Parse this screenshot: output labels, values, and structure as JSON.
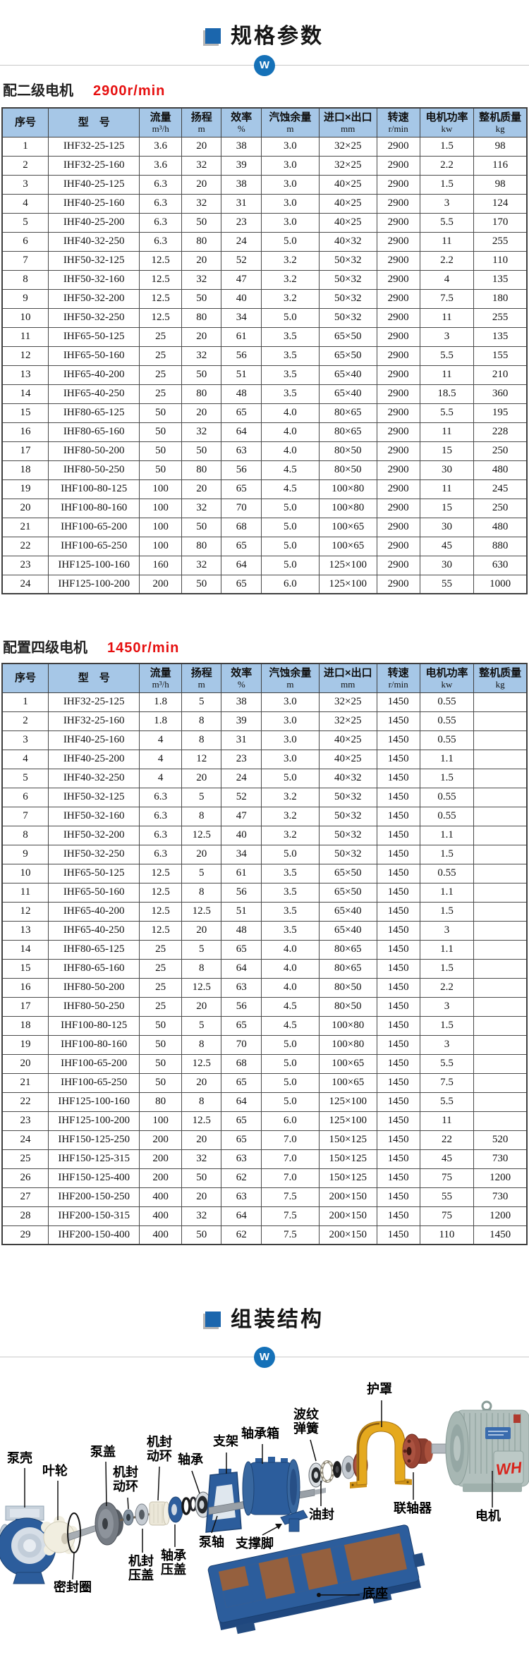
{
  "header": {
    "spec_title": "规格参数",
    "assembly_title": "组装结构",
    "logo_letter": "W"
  },
  "sections": {
    "two_pole": {
      "label": "配二级电机",
      "speed": "2900r/min"
    },
    "four_pole": {
      "label": "配置四级电机",
      "speed": "1450r/min"
    }
  },
  "table": {
    "columns": [
      {
        "title": "序号",
        "unit": ""
      },
      {
        "title": "型　号",
        "unit": ""
      },
      {
        "title": "流量",
        "unit": "m³/h"
      },
      {
        "title": "扬程",
        "unit": "m"
      },
      {
        "title": "效率",
        "unit": "%"
      },
      {
        "title": "汽蚀余量",
        "unit": "m"
      },
      {
        "title": "进口×出口",
        "unit": "mm"
      },
      {
        "title": "转速",
        "unit": "r/min"
      },
      {
        "title": "电机功率",
        "unit": "kw"
      },
      {
        "title": "整机质量",
        "unit": "kg"
      }
    ]
  },
  "table_2900": {
    "rows": [
      [
        "1",
        "IHF32-25-125",
        "3.6",
        "20",
        "38",
        "3.0",
        "32×25",
        "2900",
        "1.5",
        "98"
      ],
      [
        "2",
        "IHF32-25-160",
        "3.6",
        "32",
        "39",
        "3.0",
        "32×25",
        "2900",
        "2.2",
        "116"
      ],
      [
        "3",
        "IHF40-25-125",
        "6.3",
        "20",
        "38",
        "3.0",
        "40×25",
        "2900",
        "1.5",
        "98"
      ],
      [
        "4",
        "IHF40-25-160",
        "6.3",
        "32",
        "31",
        "3.0",
        "40×25",
        "2900",
        "3",
        "124"
      ],
      [
        "5",
        "IHF40-25-200",
        "6.3",
        "50",
        "23",
        "3.0",
        "40×25",
        "2900",
        "5.5",
        "170"
      ],
      [
        "6",
        "IHF40-32-250",
        "6.3",
        "80",
        "24",
        "5.0",
        "40×32",
        "2900",
        "11",
        "255"
      ],
      [
        "7",
        "IHF50-32-125",
        "12.5",
        "20",
        "52",
        "3.2",
        "50×32",
        "2900",
        "2.2",
        "110"
      ],
      [
        "8",
        "IHF50-32-160",
        "12.5",
        "32",
        "47",
        "3.2",
        "50×32",
        "2900",
        "4",
        "135"
      ],
      [
        "9",
        "IHF50-32-200",
        "12.5",
        "50",
        "40",
        "3.2",
        "50×32",
        "2900",
        "7.5",
        "180"
      ],
      [
        "10",
        "IHF50-32-250",
        "12.5",
        "80",
        "34",
        "5.0",
        "50×32",
        "2900",
        "11",
        "255"
      ],
      [
        "11",
        "IHF65-50-125",
        "25",
        "20",
        "61",
        "3.5",
        "65×50",
        "2900",
        "3",
        "135"
      ],
      [
        "12",
        "IHF65-50-160",
        "25",
        "32",
        "56",
        "3.5",
        "65×50",
        "2900",
        "5.5",
        "155"
      ],
      [
        "13",
        "IHF65-40-200",
        "25",
        "50",
        "51",
        "3.5",
        "65×40",
        "2900",
        "11",
        "210"
      ],
      [
        "14",
        "IHF65-40-250",
        "25",
        "80",
        "48",
        "3.5",
        "65×40",
        "2900",
        "18.5",
        "360"
      ],
      [
        "15",
        "IHF80-65-125",
        "50",
        "20",
        "65",
        "4.0",
        "80×65",
        "2900",
        "5.5",
        "195"
      ],
      [
        "16",
        "IHF80-65-160",
        "50",
        "32",
        "64",
        "4.0",
        "80×65",
        "2900",
        "11",
        "228"
      ],
      [
        "17",
        "IHF80-50-200",
        "50",
        "50",
        "63",
        "4.0",
        "80×50",
        "2900",
        "15",
        "250"
      ],
      [
        "18",
        "IHF80-50-250",
        "50",
        "80",
        "56",
        "4.5",
        "80×50",
        "2900",
        "30",
        "480"
      ],
      [
        "19",
        "IHF100-80-125",
        "100",
        "20",
        "65",
        "4.5",
        "100×80",
        "2900",
        "11",
        "245"
      ],
      [
        "20",
        "IHF100-80-160",
        "100",
        "32",
        "70",
        "5.0",
        "100×80",
        "2900",
        "15",
        "250"
      ],
      [
        "21",
        "IHF100-65-200",
        "100",
        "50",
        "68",
        "5.0",
        "100×65",
        "2900",
        "30",
        "480"
      ],
      [
        "22",
        "IHF100-65-250",
        "100",
        "80",
        "65",
        "5.0",
        "100×65",
        "2900",
        "45",
        "880"
      ],
      [
        "23",
        "IHF125-100-160",
        "160",
        "32",
        "64",
        "5.0",
        "125×100",
        "2900",
        "30",
        "630"
      ],
      [
        "24",
        "IHF125-100-200",
        "200",
        "50",
        "65",
        "6.0",
        "125×100",
        "2900",
        "55",
        "1000"
      ]
    ]
  },
  "table_1450": {
    "rows": [
      [
        "1",
        "IHF32-25-125",
        "1.8",
        "5",
        "38",
        "3.0",
        "32×25",
        "1450",
        "0.55",
        ""
      ],
      [
        "2",
        "IHF32-25-160",
        "1.8",
        "8",
        "39",
        "3.0",
        "32×25",
        "1450",
        "0.55",
        ""
      ],
      [
        "3",
        "IHF40-25-160",
        "4",
        "8",
        "31",
        "3.0",
        "40×25",
        "1450",
        "0.55",
        ""
      ],
      [
        "4",
        "IHF40-25-200",
        "4",
        "12",
        "23",
        "3.0",
        "40×25",
        "1450",
        "1.1",
        ""
      ],
      [
        "5",
        "IHF40-32-250",
        "4",
        "20",
        "24",
        "5.0",
        "40×32",
        "1450",
        "1.5",
        ""
      ],
      [
        "6",
        "IHF50-32-125",
        "6.3",
        "5",
        "52",
        "3.2",
        "50×32",
        "1450",
        "0.55",
        ""
      ],
      [
        "7",
        "IHF50-32-160",
        "6.3",
        "8",
        "47",
        "3.2",
        "50×32",
        "1450",
        "0.55",
        ""
      ],
      [
        "8",
        "IHF50-32-200",
        "6.3",
        "12.5",
        "40",
        "3.2",
        "50×32",
        "1450",
        "1.1",
        ""
      ],
      [
        "9",
        "IHF50-32-250",
        "6.3",
        "20",
        "34",
        "5.0",
        "50×32",
        "1450",
        "1.5",
        ""
      ],
      [
        "10",
        "IHF65-50-125",
        "12.5",
        "5",
        "61",
        "3.5",
        "65×50",
        "1450",
        "0.55",
        ""
      ],
      [
        "11",
        "IHF65-50-160",
        "12.5",
        "8",
        "56",
        "3.5",
        "65×50",
        "1450",
        "1.1",
        ""
      ],
      [
        "12",
        "IHF65-40-200",
        "12.5",
        "12.5",
        "51",
        "3.5",
        "65×40",
        "1450",
        "1.5",
        ""
      ],
      [
        "13",
        "IHF65-40-250",
        "12.5",
        "20",
        "48",
        "3.5",
        "65×40",
        "1450",
        "3",
        ""
      ],
      [
        "14",
        "IHF80-65-125",
        "25",
        "5",
        "65",
        "4.0",
        "80×65",
        "1450",
        "1.1",
        ""
      ],
      [
        "15",
        "IHF80-65-160",
        "25",
        "8",
        "64",
        "4.0",
        "80×65",
        "1450",
        "1.5",
        ""
      ],
      [
        "16",
        "IHF80-50-200",
        "25",
        "12.5",
        "63",
        "4.0",
        "80×50",
        "1450",
        "2.2",
        ""
      ],
      [
        "17",
        "IHF80-50-250",
        "25",
        "20",
        "56",
        "4.5",
        "80×50",
        "1450",
        "3",
        ""
      ],
      [
        "18",
        "IHF100-80-125",
        "50",
        "5",
        "65",
        "4.5",
        "100×80",
        "1450",
        "1.5",
        ""
      ],
      [
        "19",
        "IHF100-80-160",
        "50",
        "8",
        "70",
        "5.0",
        "100×80",
        "1450",
        "3",
        ""
      ],
      [
        "20",
        "IHF100-65-200",
        "50",
        "12.5",
        "68",
        "5.0",
        "100×65",
        "1450",
        "5.5",
        ""
      ],
      [
        "21",
        "IHF100-65-250",
        "50",
        "20",
        "65",
        "5.0",
        "100×65",
        "1450",
        "7.5",
        ""
      ],
      [
        "22",
        "IHF125-100-160",
        "80",
        "8",
        "64",
        "5.0",
        "125×100",
        "1450",
        "5.5",
        ""
      ],
      [
        "23",
        "IHF125-100-200",
        "100",
        "12.5",
        "65",
        "6.0",
        "125×100",
        "1450",
        "11",
        ""
      ],
      [
        "24",
        "IHF150-125-250",
        "200",
        "20",
        "65",
        "7.0",
        "150×125",
        "1450",
        "22",
        "520"
      ],
      [
        "25",
        "IHF150-125-315",
        "200",
        "32",
        "63",
        "7.0",
        "150×125",
        "1450",
        "45",
        "730"
      ],
      [
        "26",
        "IHF150-125-400",
        "200",
        "50",
        "62",
        "7.0",
        "150×125",
        "1450",
        "75",
        "1200"
      ],
      [
        "27",
        "IHF200-150-250",
        "400",
        "20",
        "63",
        "7.5",
        "200×150",
        "1450",
        "55",
        "730"
      ],
      [
        "28",
        "IHF200-150-315",
        "400",
        "32",
        "64",
        "7.5",
        "200×150",
        "1450",
        "75",
        "1200"
      ],
      [
        "29",
        "IHF200-150-400",
        "400",
        "50",
        "62",
        "7.5",
        "200×150",
        "1450",
        "110",
        "1450"
      ]
    ]
  },
  "diagram": {
    "motor_mark": "WH",
    "labels": [
      {
        "text": "泵壳"
      },
      {
        "text": "叶轮"
      },
      {
        "text": "泵盖"
      },
      {
        "text": "机封动环"
      },
      {
        "text": "机封动环"
      },
      {
        "text": "机封压盖"
      },
      {
        "text": "轴承压盖"
      },
      {
        "text": "轴承"
      },
      {
        "text": "支架"
      },
      {
        "text": "轴承箱"
      },
      {
        "text": "泵轴"
      },
      {
        "text": "支撑脚"
      },
      {
        "text": "波纹弹簧"
      },
      {
        "text": "油封"
      },
      {
        "text": "护罩"
      },
      {
        "text": "联轴器"
      },
      {
        "text": "电机"
      },
      {
        "text": "密封圈"
      },
      {
        "text": "底座"
      }
    ]
  },
  "colors": {
    "accent_blue": "#1b66ad",
    "table_header_bg": "#a6c7e7",
    "speed_red": "#e60f0f",
    "guard_yellow": "#e5a91e",
    "part_blue": "#2c5d9c"
  }
}
